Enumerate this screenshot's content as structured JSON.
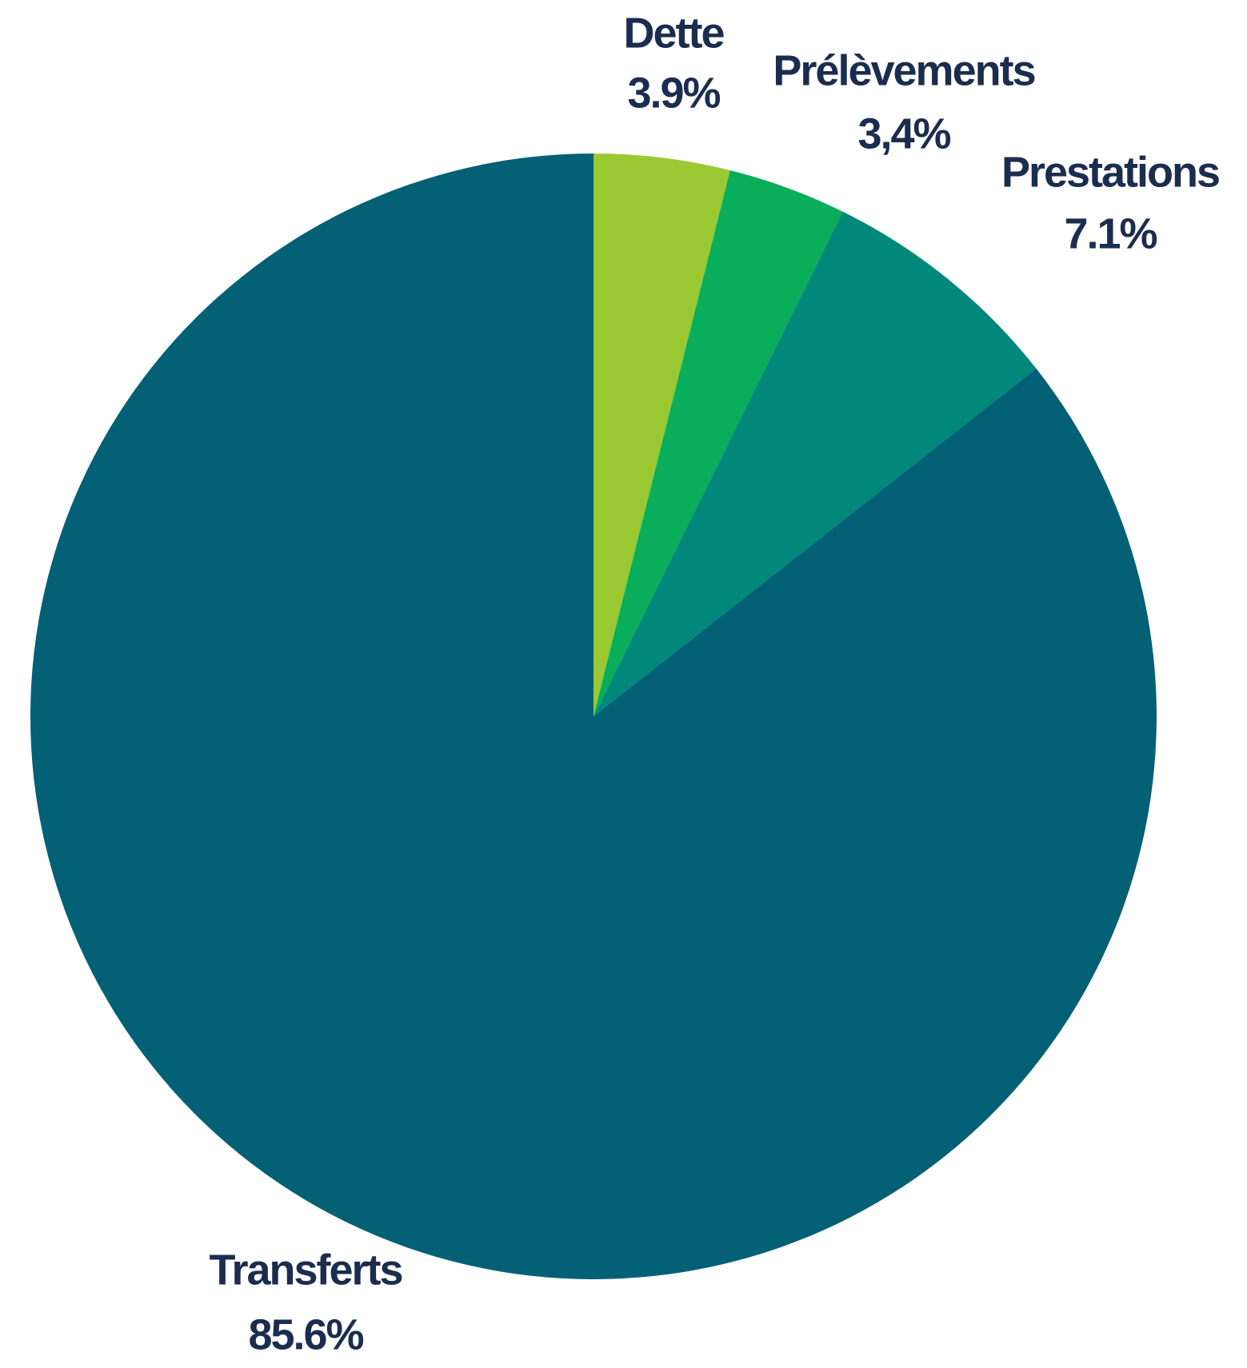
{
  "chart_data": {
    "type": "pie",
    "categories": [
      "Dette",
      "Prélèvements",
      "Prestations",
      "Transferts"
    ],
    "values": [
      3.9,
      3.4,
      7.1,
      85.6
    ],
    "value_labels": [
      "3.9%",
      "3,4%",
      "7.1%",
      "85.6%"
    ],
    "colors": [
      "#9bc934",
      "#0aad5a",
      "#00887a",
      "#036075"
    ]
  }
}
